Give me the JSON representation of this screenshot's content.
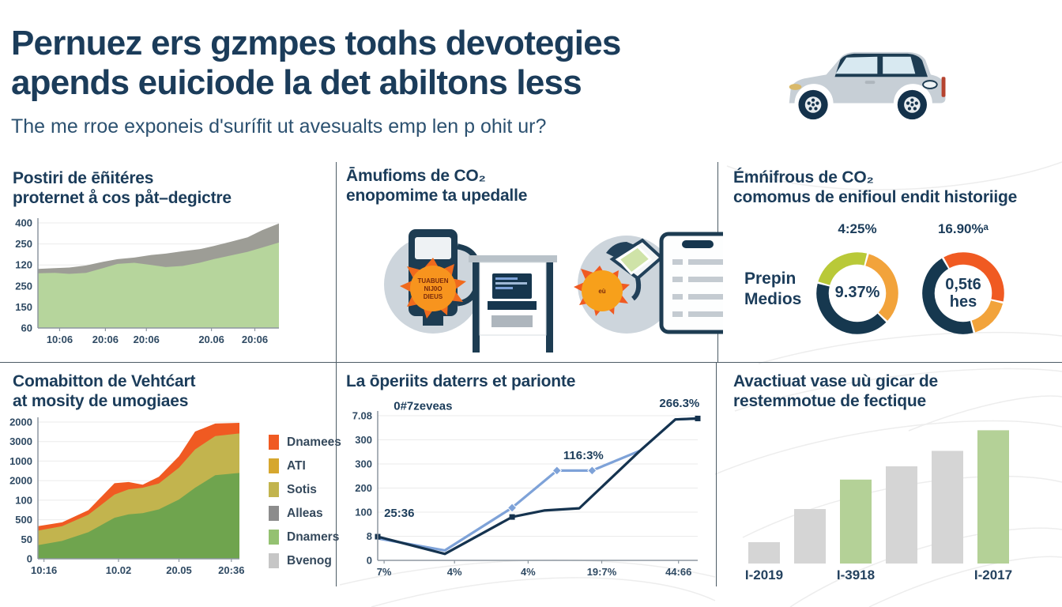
{
  "header": {
    "title_line1": "Pernuez ers gzmpes toɑhs devotegies",
    "title_line2": "apends euiciode la det abiltons less",
    "subtitle": "The me rroe exponeis d'surífit ut avesualts emp len p ohit ur?"
  },
  "panels": {
    "p1": {
      "title1": "Postiri de ēñitéres",
      "title2": "proternet å cos påt–degictre"
    },
    "p2": {
      "title1": "Āmufioms de CO₂",
      "title2": "enopomime ta upedalle",
      "badge1": [
        "TUABUEN",
        "NIJ0O",
        "DIEUS"
      ],
      "badge2": "eù"
    },
    "p3": {
      "title1": "Émńifrous de CO₂",
      "title2": "comomus de enifioul endit historiige",
      "side_label1": "Prepin",
      "side_label2": "Medios"
    },
    "p4": {
      "title1": "Comabitton de Vehtćart",
      "title2": "at mosity de umogiaes"
    },
    "p5": {
      "title": "La ōperiits daterrs et parionte"
    },
    "p6": {
      "title1": "Avactiuat vase uù gicar de",
      "title2": "restemmotue de fectique"
    }
  },
  "icons": {
    "car": "car-side-icon",
    "pump": "fuel-pump-icon",
    "burst": "explosion-burst-icon",
    "kiosk": "charging-kiosk-icon",
    "sun": "sun-burst-icon",
    "nozzle": "fuel-nozzle-icon",
    "clipboard": "checklist-clipboard-icon"
  },
  "chart_data": [
    {
      "id": "p1_area",
      "type": "area",
      "title": "Postiri de ēñitéres proternet å cos påt–degictre",
      "y_ticks": [
        "400",
        "250",
        "120",
        "250",
        "150",
        "60"
      ],
      "x_ticks": [
        "10:06",
        "20:06",
        "20:06",
        "20.06",
        "20:06"
      ],
      "y_max": 400,
      "grid": true,
      "legend_position": "none",
      "series": [
        {
          "name": "gray-total",
          "color": "#9d9d96",
          "x": [
            0,
            0.07,
            0.13,
            0.2,
            0.27,
            0.33,
            0.4,
            0.47,
            0.53,
            0.6,
            0.67,
            0.73,
            0.8,
            0.87,
            0.93,
            1
          ],
          "values": [
            225,
            228,
            230,
            238,
            252,
            262,
            268,
            278,
            283,
            292,
            300,
            312,
            328,
            345,
            372,
            398
          ]
        },
        {
          "name": "green",
          "color": "#b6d59c",
          "x": [
            0,
            0.07,
            0.13,
            0.2,
            0.27,
            0.33,
            0.4,
            0.47,
            0.53,
            0.6,
            0.67,
            0.73,
            0.8,
            0.87,
            0.93,
            1
          ],
          "values": [
            208,
            210,
            206,
            210,
            228,
            244,
            248,
            240,
            232,
            236,
            248,
            262,
            276,
            290,
            306,
            325
          ]
        }
      ]
    },
    {
      "id": "p3_donuts",
      "type": "pie",
      "variant": "donut",
      "side_label": "Prepin Medios",
      "donuts": [
        {
          "top_label": "4:25%",
          "center_label": "9.37%",
          "start_angle": 285,
          "segments": [
            {
              "name": "yellow-green",
              "color": "#b9c938",
              "pct": 25
            },
            {
              "name": "amber",
              "color": "#f2a33b",
              "pct": 33
            },
            {
              "name": "navy",
              "color": "#16384f",
              "pct": 42
            }
          ]
        },
        {
          "top_label": "16.90%ᵃ",
          "center_label_line1": "0,5t6",
          "center_label_line2": "hes",
          "start_angle": 330,
          "segments": [
            {
              "name": "orange",
              "color": "#f05a22",
              "pct": 37
            },
            {
              "name": "amber",
              "color": "#f2a33b",
              "pct": 17
            },
            {
              "name": "navy",
              "color": "#16384f",
              "pct": 46
            }
          ]
        }
      ]
    },
    {
      "id": "p4_stacked",
      "type": "area",
      "variant": "stacked",
      "y_ticks": [
        "2000",
        "3000",
        "1000",
        "2000",
        "100",
        "500",
        "50",
        "0"
      ],
      "x_ticks": [
        "10:16",
        "10.02",
        "20.05",
        "20:36"
      ],
      "y_max": 3600,
      "grid": true,
      "legend_position": "right",
      "legend": [
        {
          "label": "Dnamees",
          "color": "#f05a22"
        },
        {
          "label": "ATI",
          "color": "#d6a72e"
        },
        {
          "label": "Sotis",
          "color": "#c2b44e"
        },
        {
          "label": "Alleas",
          "color": "#8c8c8c"
        },
        {
          "label": "Dnamers",
          "color": "#94c171"
        },
        {
          "label": "Bvenog",
          "color": "#c6c6c6"
        }
      ],
      "series": [
        {
          "name": "orange",
          "color": "#f05a22",
          "x": [
            0,
            0.12,
            0.25,
            0.38,
            0.45,
            0.52,
            0.6,
            0.7,
            0.78,
            0.88,
            1
          ],
          "values": [
            860,
            960,
            1280,
            1990,
            2020,
            1950,
            2160,
            2700,
            3350,
            3560,
            3580
          ]
        },
        {
          "name": "olive",
          "color": "#c2b44e",
          "x": [
            0,
            0.12,
            0.25,
            0.38,
            0.45,
            0.52,
            0.6,
            0.7,
            0.78,
            0.88,
            1
          ],
          "values": [
            740,
            860,
            1160,
            1690,
            1830,
            1870,
            1980,
            2400,
            2880,
            3230,
            3300
          ]
        },
        {
          "name": "green",
          "color": "#6fa44e",
          "x": [
            0,
            0.12,
            0.25,
            0.38,
            0.45,
            0.52,
            0.6,
            0.7,
            0.78,
            0.88,
            1
          ],
          "values": [
            360,
            470,
            700,
            1080,
            1170,
            1200,
            1300,
            1560,
            1870,
            2200,
            2260
          ]
        }
      ]
    },
    {
      "id": "p5_lines",
      "type": "line",
      "y_ticks": [
        "7.08",
        "300",
        "300",
        "200",
        "100",
        "8",
        "0"
      ],
      "x_ticks": [
        "7%",
        "4%",
        "4%",
        "19:7%",
        "44:66"
      ],
      "y_max": 580,
      "grid": true,
      "series": [
        {
          "name": "light-blue",
          "color": "#7ea2d8",
          "marker": "diamond",
          "marker_at": [
            2,
            3,
            4
          ],
          "x": [
            0,
            0.21,
            0.42,
            0.56,
            0.67,
            0.82,
            0.93,
            1
          ],
          "values": [
            88,
            40,
            211,
            360,
            360,
            440,
            565,
            569
          ]
        },
        {
          "name": "dark-navy",
          "color": "#15334f",
          "marker": "square",
          "marker_at": [
            0,
            2,
            7
          ],
          "x": [
            0,
            0.21,
            0.42,
            0.52,
            0.63,
            0.82,
            0.93,
            1
          ],
          "values": [
            95,
            26,
            174,
            200,
            209,
            440,
            565,
            569
          ]
        }
      ],
      "annotations": [
        {
          "text": "0#7zeveas",
          "fx": 0.05,
          "fy": 1.04
        },
        {
          "text": "25:36",
          "fx": 0.02,
          "fy": 0.3
        },
        {
          "text": "116:3%",
          "fx": 0.58,
          "fy": 0.7
        },
        {
          "text": "266.3%",
          "fx": 0.88,
          "fy": 1.06
        }
      ]
    },
    {
      "id": "p6_bars",
      "type": "bar",
      "values": [
        29,
        74,
        114,
        132,
        153,
        181
      ],
      "y_max": 190,
      "colors": [
        "#d5d5d5",
        "#d5d5d5",
        "#b4d197",
        "#d5d5d5",
        "#d5d5d5",
        "#b4d197"
      ],
      "x_labels": [
        {
          "bar": 0,
          "text": "I-2019"
        },
        {
          "bar": 2,
          "text": "I-3918"
        },
        {
          "bar": 5,
          "text": "I-2017"
        }
      ]
    }
  ]
}
